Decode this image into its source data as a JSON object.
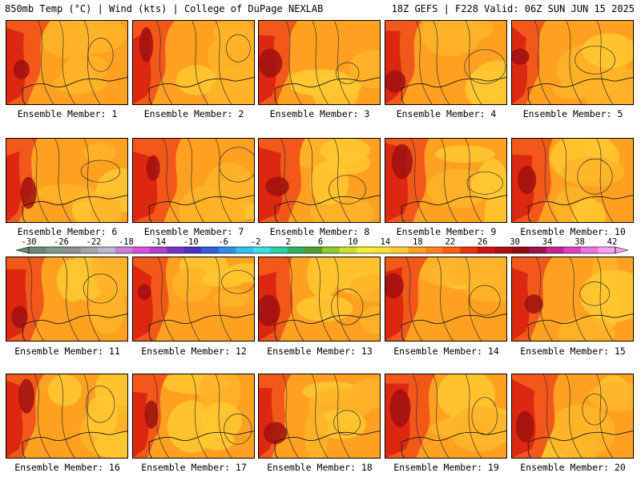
{
  "header": {
    "left": "850mb Temp (°C) | Wind (kts) | College of DuPage NEXLAB",
    "right": "18Z GEFS | F228 Valid: 06Z SUN JUN 15 2025"
  },
  "panels": [
    {
      "label": "Ensemble Member: 1"
    },
    {
      "label": "Ensemble Member: 2"
    },
    {
      "label": "Ensemble Member: 3"
    },
    {
      "label": "Ensemble Member: 4"
    },
    {
      "label": "Ensemble Member: 5"
    },
    {
      "label": "Ensemble Member: 6"
    },
    {
      "label": "Ensemble Member: 7"
    },
    {
      "label": "Ensemble Member: 8"
    },
    {
      "label": "Ensemble Member: 9"
    },
    {
      "label": "Ensemble Member: 10"
    },
    {
      "label": "Ensemble Member: 11"
    },
    {
      "label": "Ensemble Member: 12"
    },
    {
      "label": "Ensemble Member: 13"
    },
    {
      "label": "Ensemble Member: 14"
    },
    {
      "label": "Ensemble Member: 15"
    },
    {
      "label": "Ensemble Member: 16"
    },
    {
      "label": "Ensemble Member: 17"
    },
    {
      "label": "Ensemble Member: 18"
    },
    {
      "label": "Ensemble Member: 19"
    },
    {
      "label": "Ensemble Member: 20"
    }
  ],
  "colorbar": {
    "tick_labels": [
      "-30",
      "-26",
      "-22",
      "-18",
      "-14",
      "-10",
      "-6",
      "-2",
      "2",
      "6",
      "10",
      "14",
      "18",
      "22",
      "26",
      "30",
      "34",
      "38",
      "42"
    ],
    "colors": [
      "#6e8a6e",
      "#7f9b7f",
      "#8f8f8f",
      "#a5a5a5",
      "#b8b8d0",
      "#c87fd8",
      "#d84fe0",
      "#b33fd0",
      "#7a33c8",
      "#4a33c8",
      "#2f5fe0",
      "#2f8fe8",
      "#2fc0f0",
      "#38e0e0",
      "#2fd0a0",
      "#2fb060",
      "#4fa02f",
      "#8fc82f",
      "#c8e02f",
      "#f0f02f",
      "#ffe030",
      "#ffc830",
      "#ffa020",
      "#ff7f1a",
      "#ff5f10",
      "#f03010",
      "#d81010",
      "#b01010",
      "#8f0a0a",
      "#a0104f",
      "#c8208f",
      "#e040c0",
      "#f070e0",
      "#f8a0f0"
    ]
  }
}
